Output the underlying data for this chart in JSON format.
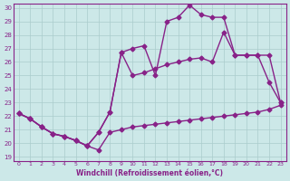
{
  "line1_x": [
    0,
    1,
    2,
    3,
    4,
    5,
    6,
    7,
    8,
    9,
    10,
    11,
    12,
    13,
    14,
    15,
    16,
    17,
    18,
    19,
    20,
    21,
    22,
    23
  ],
  "line1_y": [
    22.2,
    21.8,
    21.2,
    20.7,
    20.5,
    20.2,
    19.8,
    19.5,
    20.8,
    21.0,
    21.2,
    21.3,
    21.4,
    21.5,
    21.6,
    21.7,
    21.8,
    21.9,
    22.0,
    22.1,
    22.2,
    22.3,
    22.5,
    22.8
  ],
  "line2_x": [
    0,
    1,
    2,
    3,
    4,
    5,
    6,
    7,
    8,
    9,
    10,
    11,
    12,
    13,
    14,
    15,
    16,
    17,
    18,
    19,
    20,
    21,
    22,
    23
  ],
  "line2_y": [
    22.2,
    21.8,
    21.2,
    20.7,
    20.5,
    20.2,
    19.8,
    20.8,
    22.3,
    26.7,
    25.0,
    25.2,
    25.5,
    25.8,
    26.0,
    26.2,
    26.3,
    26.0,
    28.2,
    26.5,
    26.5,
    26.5,
    26.5,
    23.0
  ],
  "line3_x": [
    0,
    1,
    2,
    3,
    4,
    5,
    6,
    7,
    8,
    9,
    10,
    11,
    12,
    13,
    14,
    15,
    16,
    17,
    18,
    19,
    20,
    21,
    22,
    23
  ],
  "line3_y": [
    22.2,
    21.8,
    21.2,
    20.7,
    20.5,
    20.2,
    19.8,
    20.8,
    22.3,
    26.7,
    27.0,
    27.2,
    25.0,
    29.0,
    29.3,
    30.2,
    29.5,
    29.3,
    29.3,
    26.5,
    26.5,
    26.5,
    24.5,
    23.0
  ],
  "color": "#882288",
  "bg_color": "#cce8e8",
  "grid_color": "#aacccc",
  "xlabel": "Windchill (Refroidissement éolien,°C)",
  "ylim": [
    19,
    30
  ],
  "xlim": [
    -0.5,
    23.5
  ],
  "yticks": [
    19,
    20,
    21,
    22,
    23,
    24,
    25,
    26,
    27,
    28,
    29,
    30
  ],
  "xticks": [
    0,
    1,
    2,
    3,
    4,
    5,
    6,
    7,
    8,
    9,
    10,
    11,
    12,
    13,
    14,
    15,
    16,
    17,
    18,
    19,
    20,
    21,
    22,
    23
  ],
  "marker": "D",
  "markersize": 2.5,
  "linewidth": 1.0
}
